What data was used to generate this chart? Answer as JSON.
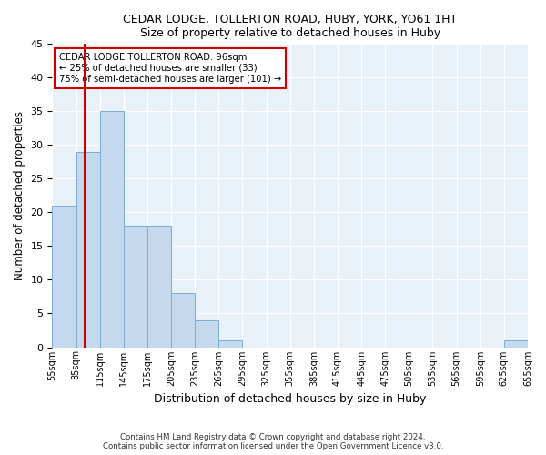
{
  "title": "CEDAR LODGE, TOLLERTON ROAD, HUBY, YORK, YO61 1HT",
  "subtitle": "Size of property relative to detached houses in Huby",
  "xlabel": "Distribution of detached houses by size in Huby",
  "ylabel": "Number of detached properties",
  "bar_color": "#c5d9ee",
  "bar_edge_color": "#7aadd4",
  "background_color": "#e8f0f8",
  "grid_color": "#ffffff",
  "fig_color": "#ffffff",
  "bin_edges": [
    55,
    85,
    115,
    145,
    175,
    205,
    235,
    265,
    295,
    325,
    355,
    385,
    415,
    445,
    475,
    505,
    535,
    565,
    595,
    625,
    655
  ],
  "bin_labels": [
    "55sqm",
    "85sqm",
    "115sqm",
    "145sqm",
    "175sqm",
    "205sqm",
    "235sqm",
    "265sqm",
    "295sqm",
    "325sqm",
    "355sqm",
    "385sqm",
    "415sqm",
    "445sqm",
    "475sqm",
    "505sqm",
    "535sqm",
    "565sqm",
    "595sqm",
    "625sqm",
    "655sqm"
  ],
  "counts": [
    21,
    29,
    35,
    18,
    18,
    8,
    4,
    1,
    0,
    0,
    0,
    0,
    0,
    0,
    0,
    0,
    0,
    0,
    0,
    1
  ],
  "property_size": 96,
  "property_label": "CEDAR LODGE TOLLERTON ROAD: 96sqm",
  "annotation_line1": "← 25% of detached houses are smaller (33)",
  "annotation_line2": "75% of semi-detached houses are larger (101) →",
  "vline_color": "#cc0000",
  "annotation_box_edge": "#cc0000",
  "ylim": [
    0,
    45
  ],
  "yticks": [
    0,
    5,
    10,
    15,
    20,
    25,
    30,
    35,
    40,
    45
  ],
  "footnote1": "Contains HM Land Registry data © Crown copyright and database right 2024.",
  "footnote2": "Contains public sector information licensed under the Open Government Licence v3.0."
}
